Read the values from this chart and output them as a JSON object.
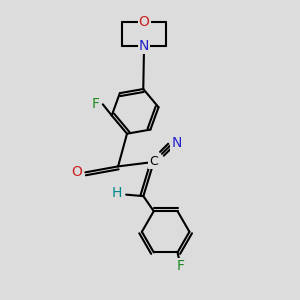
{
  "bg_color": "#dcdcdc",
  "atom_colors": {
    "C": "#000000",
    "N": "#2222cc",
    "O": "#cc2222",
    "F": "#228B22",
    "H": "#008888"
  },
  "bond_color": "#000000",
  "bond_width": 1.5
}
